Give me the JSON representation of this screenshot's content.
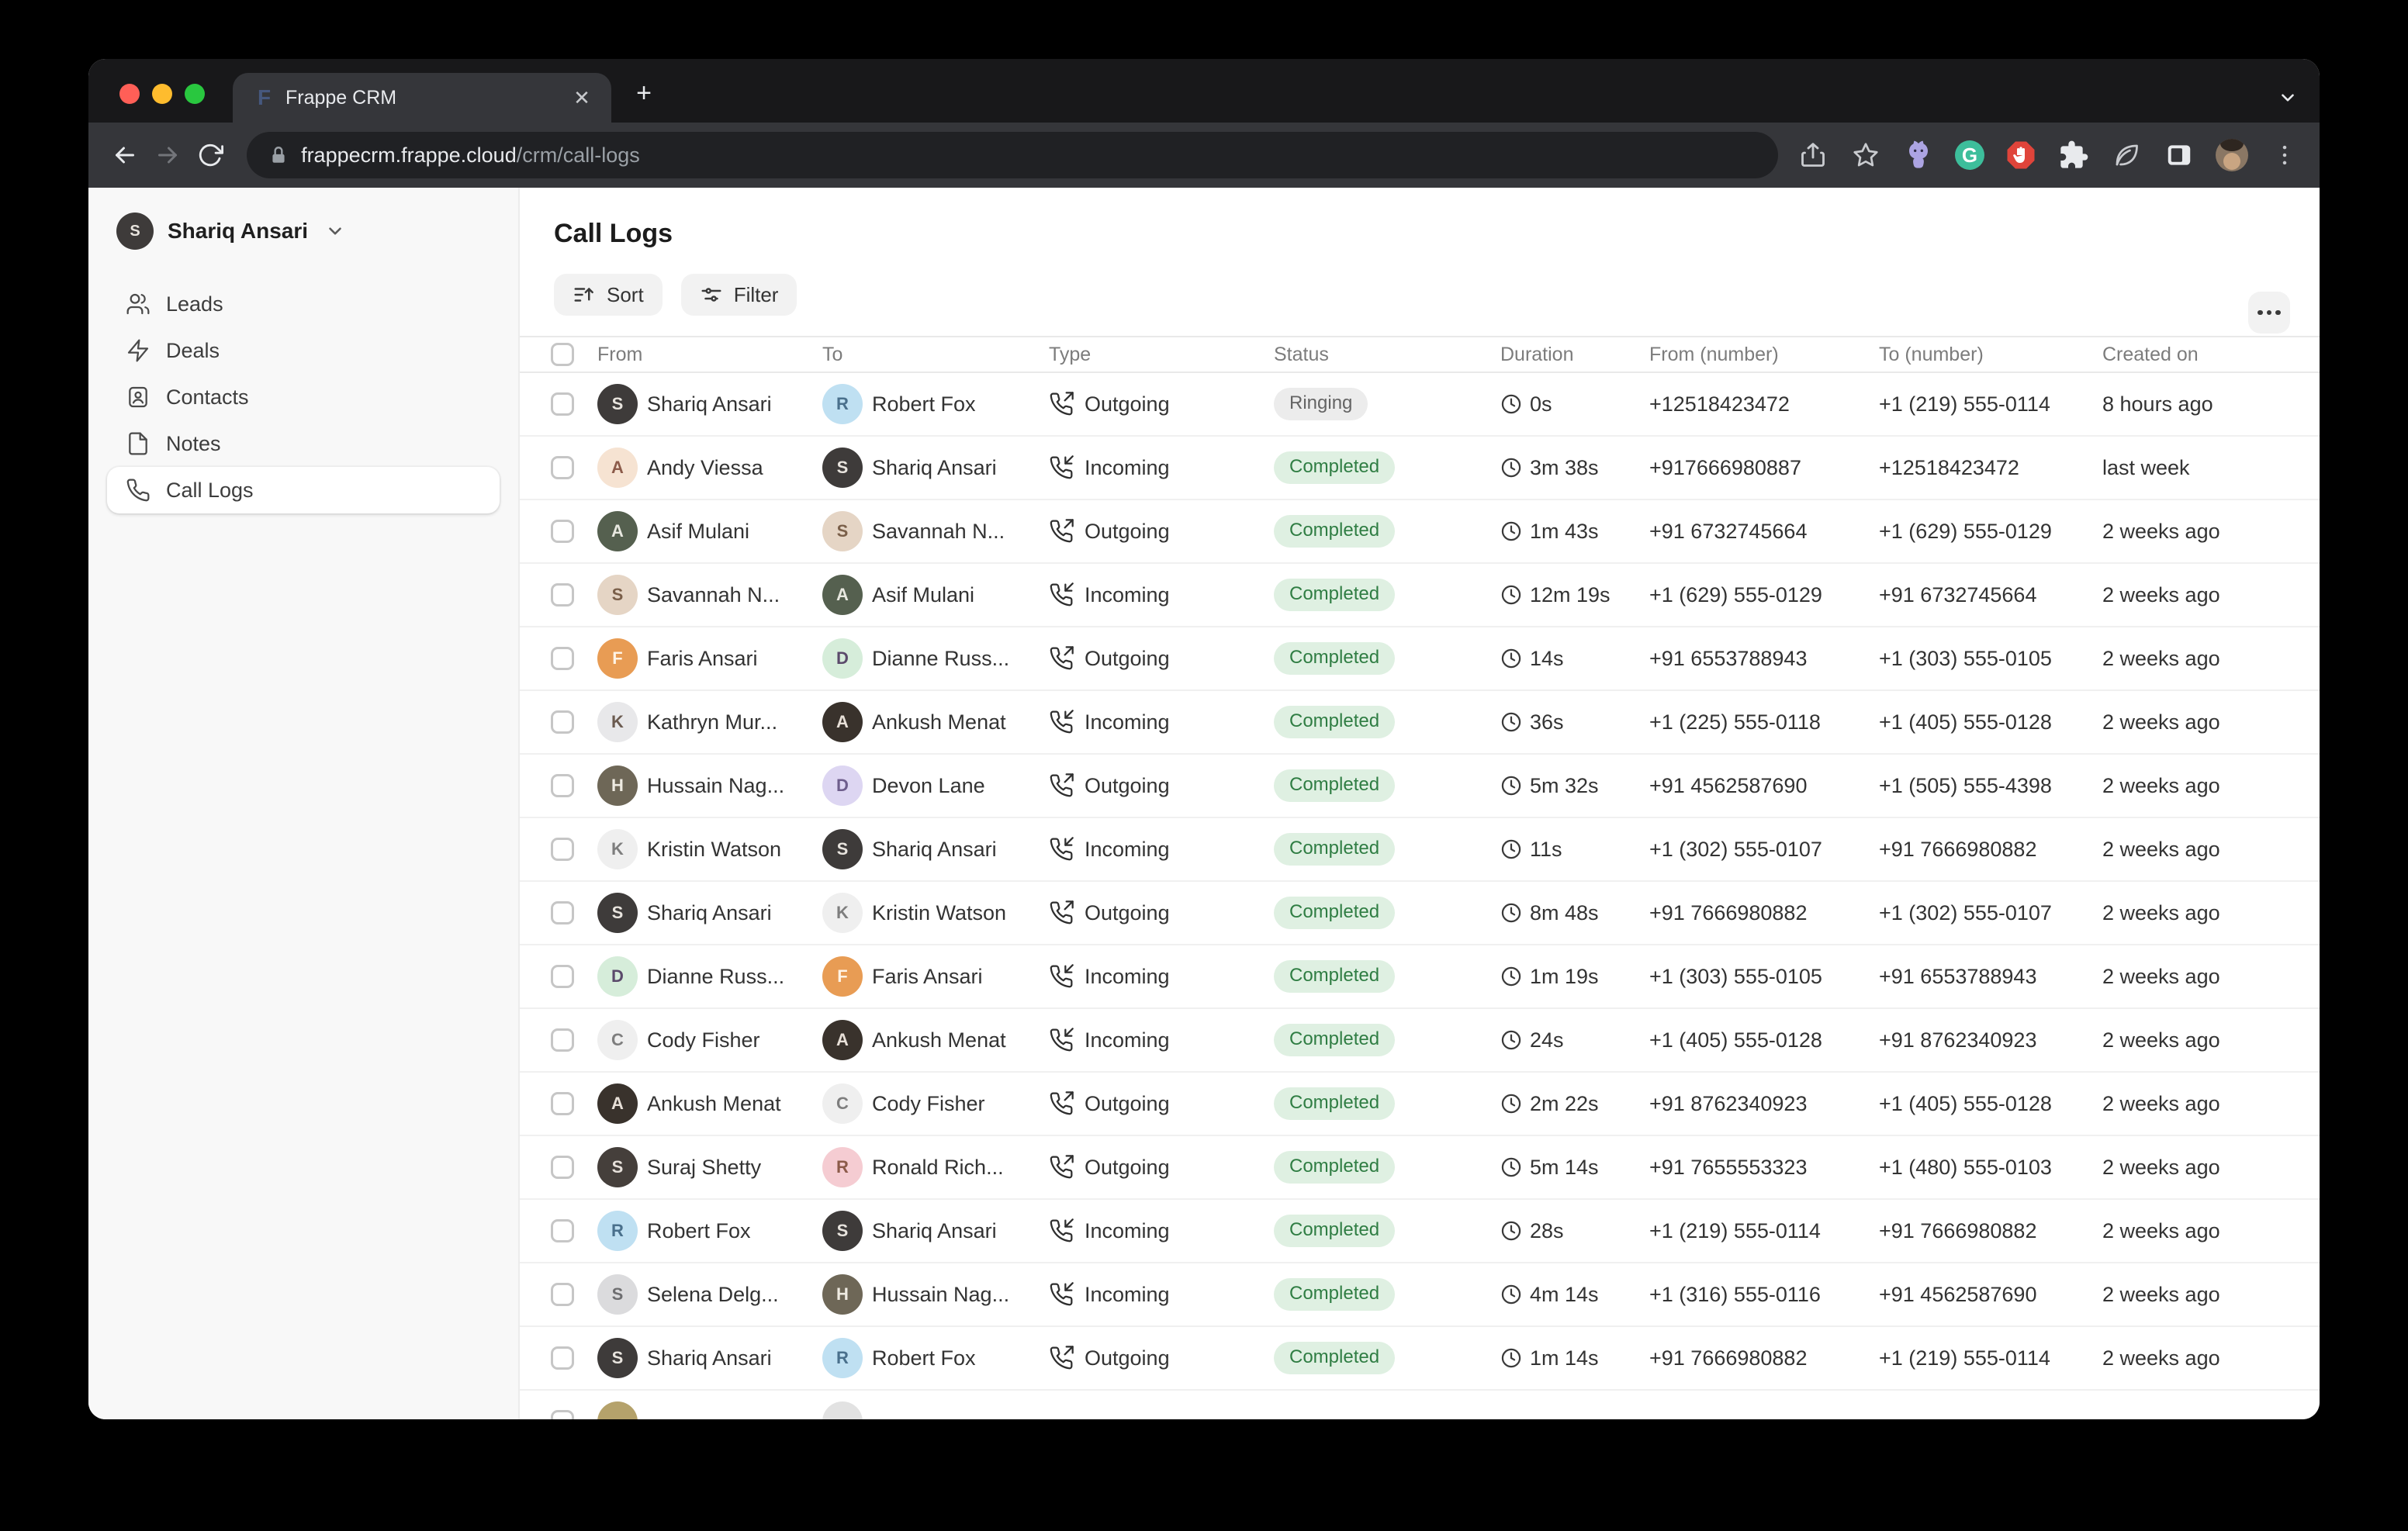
{
  "browser": {
    "tab_title": "Frappe CRM",
    "tab_close": "✕",
    "new_tab": "+",
    "url_host": "frappecrm.frappe.cloud",
    "url_path": "/crm/call-logs",
    "favicon_letter": "F"
  },
  "colors": {
    "traffic_red": "#FF5F57",
    "traffic_yellow": "#FEBC2E",
    "traffic_green": "#29C73F",
    "badge_completed_bg": "#DFF0E2",
    "badge_completed_fg": "#2F7D43",
    "badge_ringing_bg": "#ECECEC",
    "badge_ringing_fg": "#646464"
  },
  "sidebar": {
    "user_name": "Shariq Ansari",
    "user_initial": "S",
    "items": [
      {
        "label": "Leads",
        "icon": "users",
        "active": false
      },
      {
        "label": "Deals",
        "icon": "zap",
        "active": false
      },
      {
        "label": "Contacts",
        "icon": "contact",
        "active": false
      },
      {
        "label": "Notes",
        "icon": "file",
        "active": false
      },
      {
        "label": "Call Logs",
        "icon": "phone",
        "active": true
      }
    ]
  },
  "page": {
    "title": "Call Logs",
    "sort_label": "Sort",
    "filter_label": "Filter"
  },
  "table": {
    "columns": [
      "From",
      "To",
      "Type",
      "Status",
      "Duration",
      "From (number)",
      "To (number)",
      "Created on"
    ],
    "rows": [
      {
        "from": {
          "name": "Shariq Ansari",
          "initial": "S",
          "bg": "#3E3B3A",
          "fg": "#E8E4DE"
        },
        "to": {
          "name": "Robert Fox",
          "initial": "R",
          "bg": "#BFE0F2",
          "fg": "#4A708C"
        },
        "type": "Outgoing",
        "status": "Ringing",
        "duration": "0s",
        "from_number": "+12518423472",
        "to_number": "+1 (219) 555-0114",
        "created": "8 hours ago"
      },
      {
        "from": {
          "name": "Andy Viessa",
          "initial": "A",
          "bg": "#F6E3D2",
          "fg": "#8C5B4A"
        },
        "to": {
          "name": "Shariq Ansari",
          "initial": "S",
          "bg": "#3E3B3A",
          "fg": "#E8E4DE"
        },
        "type": "Incoming",
        "status": "Completed",
        "duration": "3m 38s",
        "from_number": "+917666980887",
        "to_number": "+12518423472",
        "created": "last week"
      },
      {
        "from": {
          "name": "Asif Mulani",
          "initial": "A",
          "bg": "#55604F",
          "fg": "#E8E8E0"
        },
        "to": {
          "name": "Savannah N...",
          "initial": "S",
          "bg": "#E5D5C5",
          "fg": "#7A5F49"
        },
        "type": "Outgoing",
        "status": "Completed",
        "duration": "1m 43s",
        "from_number": "+91 6732745664",
        "to_number": "+1 (629) 555-0129",
        "created": "2 weeks ago"
      },
      {
        "from": {
          "name": "Savannah N...",
          "initial": "S",
          "bg": "#E5D5C5",
          "fg": "#7A5F49"
        },
        "to": {
          "name": "Asif Mulani",
          "initial": "A",
          "bg": "#55604F",
          "fg": "#E8E8E0"
        },
        "type": "Incoming",
        "status": "Completed",
        "duration": "12m 19s",
        "from_number": "+1 (629) 555-0129",
        "to_number": "+91 6732745664",
        "created": "2 weeks ago"
      },
      {
        "from": {
          "name": "Faris Ansari",
          "initial": "F",
          "bg": "#E89C54",
          "fg": "#FFF4E6"
        },
        "to": {
          "name": "Dianne Russ...",
          "initial": "D",
          "bg": "#D6EDDA",
          "fg": "#5B4A6B"
        },
        "type": "Outgoing",
        "status": "Completed",
        "duration": "14s",
        "from_number": "+91 6553788943",
        "to_number": "+1 (303) 555-0105",
        "created": "2 weeks ago"
      },
      {
        "from": {
          "name": "Kathryn Mur...",
          "initial": "K",
          "bg": "#E8E8EA",
          "fg": "#6B5B50"
        },
        "to": {
          "name": "Ankush Menat",
          "initial": "A",
          "bg": "#39322C",
          "fg": "#E8E0D8"
        },
        "type": "Incoming",
        "status": "Completed",
        "duration": "36s",
        "from_number": "+1 (225) 555-0118",
        "to_number": "+1 (405) 555-0128",
        "created": "2 weeks ago"
      },
      {
        "from": {
          "name": "Hussain Nag...",
          "initial": "H",
          "bg": "#6E6757",
          "fg": "#EFEBE2"
        },
        "to": {
          "name": "Devon Lane",
          "initial": "D",
          "bg": "#DDD6F2",
          "fg": "#6E5E8C"
        },
        "type": "Outgoing",
        "status": "Completed",
        "duration": "5m 32s",
        "from_number": "+91 4562587690",
        "to_number": "+1 (505) 555-4398",
        "created": "2 weeks ago"
      },
      {
        "from": {
          "name": "Kristin Watson",
          "initial": "K",
          "bg": "#EFEFEF",
          "fg": "#7E7E7E"
        },
        "to": {
          "name": "Shariq Ansari",
          "initial": "S",
          "bg": "#3E3B3A",
          "fg": "#E8E4DE"
        },
        "type": "Incoming",
        "status": "Completed",
        "duration": "11s",
        "from_number": "+1 (302) 555-0107",
        "to_number": "+91 7666980882",
        "created": "2 weeks ago"
      },
      {
        "from": {
          "name": "Shariq Ansari",
          "initial": "S",
          "bg": "#3E3B3A",
          "fg": "#E8E4DE"
        },
        "to": {
          "name": "Kristin Watson",
          "initial": "K",
          "bg": "#EFEFEF",
          "fg": "#7E7E7E"
        },
        "type": "Outgoing",
        "status": "Completed",
        "duration": "8m 48s",
        "from_number": "+91 7666980882",
        "to_number": "+1 (302) 555-0107",
        "created": "2 weeks ago"
      },
      {
        "from": {
          "name": "Dianne Russ...",
          "initial": "D",
          "bg": "#D6EDDA",
          "fg": "#5B4A6B"
        },
        "to": {
          "name": "Faris Ansari",
          "initial": "F",
          "bg": "#E89C54",
          "fg": "#FFF4E6"
        },
        "type": "Incoming",
        "status": "Completed",
        "duration": "1m 19s",
        "from_number": "+1 (303) 555-0105",
        "to_number": "+91 6553788943",
        "created": "2 weeks ago"
      },
      {
        "from": {
          "name": "Cody Fisher",
          "initial": "C",
          "bg": "#EFEFEF",
          "fg": "#7E7E7E"
        },
        "to": {
          "name": "Ankush Menat",
          "initial": "A",
          "bg": "#39322C",
          "fg": "#E8E0D8"
        },
        "type": "Incoming",
        "status": "Completed",
        "duration": "24s",
        "from_number": "+1 (405) 555-0128",
        "to_number": "+91 8762340923",
        "created": "2 weeks ago"
      },
      {
        "from": {
          "name": "Ankush Menat",
          "initial": "A",
          "bg": "#39322C",
          "fg": "#E8E0D8"
        },
        "to": {
          "name": "Cody Fisher",
          "initial": "C",
          "bg": "#EFEFEF",
          "fg": "#7E7E7E"
        },
        "type": "Outgoing",
        "status": "Completed",
        "duration": "2m 22s",
        "from_number": "+91 8762340923",
        "to_number": "+1 (405) 555-0128",
        "created": "2 weeks ago"
      },
      {
        "from": {
          "name": "Suraj Shetty",
          "initial": "S",
          "bg": "#453F3B",
          "fg": "#E6E0DA"
        },
        "to": {
          "name": "Ronald Rich...",
          "initial": "R",
          "bg": "#F5CCD2",
          "fg": "#8C5B4A"
        },
        "type": "Outgoing",
        "status": "Completed",
        "duration": "5m 14s",
        "from_number": "+91 7655553323",
        "to_number": "+1 (480) 555-0103",
        "created": "2 weeks ago"
      },
      {
        "from": {
          "name": "Robert Fox",
          "initial": "R",
          "bg": "#BFE0F2",
          "fg": "#4A708C"
        },
        "to": {
          "name": "Shariq Ansari",
          "initial": "S",
          "bg": "#3E3B3A",
          "fg": "#E8E4DE"
        },
        "type": "Incoming",
        "status": "Completed",
        "duration": "28s",
        "from_number": "+1 (219) 555-0114",
        "to_number": "+91 7666980882",
        "created": "2 weeks ago"
      },
      {
        "from": {
          "name": "Selena Delg...",
          "initial": "S",
          "bg": "#DBDBDD",
          "fg": "#6E6E70"
        },
        "to": {
          "name": "Hussain Nag...",
          "initial": "H",
          "bg": "#6E6757",
          "fg": "#EFEBE2"
        },
        "type": "Incoming",
        "status": "Completed",
        "duration": "4m 14s",
        "from_number": "+1 (316) 555-0116",
        "to_number": "+91 4562587690",
        "created": "2 weeks ago"
      },
      {
        "from": {
          "name": "Shariq Ansari",
          "initial": "S",
          "bg": "#3E3B3A",
          "fg": "#E8E4DE"
        },
        "to": {
          "name": "Robert Fox",
          "initial": "R",
          "bg": "#BFE0F2",
          "fg": "#4A708C"
        },
        "type": "Outgoing",
        "status": "Completed",
        "duration": "1m 14s",
        "from_number": "+91 7666980882",
        "to_number": "+1 (219) 555-0114",
        "created": "2 weeks ago"
      }
    ],
    "partial_row": {
      "from_bg": "#B5A26B",
      "to_bg": "#E2E2E2"
    }
  }
}
